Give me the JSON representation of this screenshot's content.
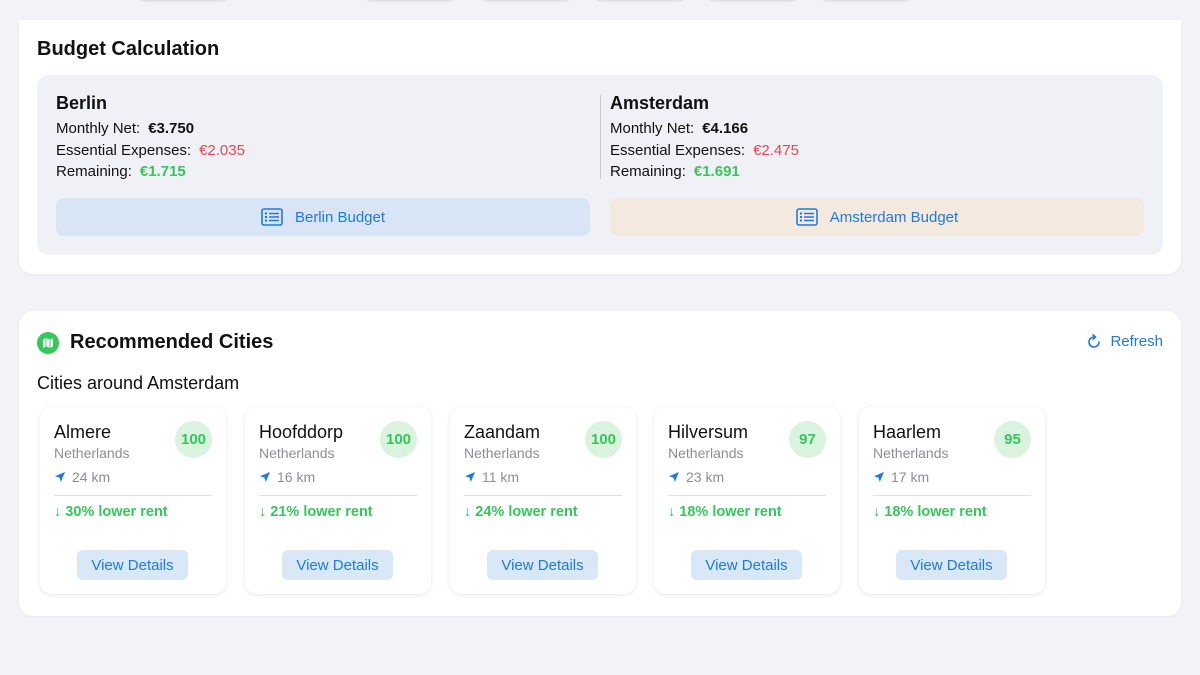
{
  "budget": {
    "title": "Budget Calculation",
    "cities": [
      {
        "name": "Berlin",
        "monthly_net_label": "Monthly Net:",
        "monthly_net": "€3.750",
        "expenses_label": "Essential Expenses:",
        "expenses": "€2.035",
        "remaining_label": "Remaining:",
        "remaining": "€1.715",
        "button_label": "Berlin Budget"
      },
      {
        "name": "Amsterdam",
        "monthly_net_label": "Monthly Net:",
        "monthly_net": "€4.166",
        "expenses_label": "Essential Expenses:",
        "expenses": "€2.475",
        "remaining_label": "Remaining:",
        "remaining": "€1.691",
        "button_label": "Amsterdam Budget"
      }
    ]
  },
  "recommended": {
    "title": "Recommended Cities",
    "refresh_label": "Refresh",
    "subtitle": "Cities around Amsterdam",
    "view_details_label": "View Details",
    "cities": [
      {
        "name": "Almere",
        "country": "Netherlands",
        "score": "100",
        "distance": "24 km",
        "rent": "30% lower rent"
      },
      {
        "name": "Hoofddorp",
        "country": "Netherlands",
        "score": "100",
        "distance": "16 km",
        "rent": "21% lower rent"
      },
      {
        "name": "Zaandam",
        "country": "Netherlands",
        "score": "100",
        "distance": "11 km",
        "rent": "24% lower rent"
      },
      {
        "name": "Hilversum",
        "country": "Netherlands",
        "score": "97",
        "distance": "23 km",
        "rent": "18% lower rent"
      },
      {
        "name": "Haarlem",
        "country": "Netherlands",
        "score": "95",
        "distance": "17 km",
        "rent": "18% lower rent"
      }
    ]
  },
  "colors": {
    "accent": "#1e7ae0",
    "positive": "#34c759",
    "negative": "#e5484d",
    "background": "#f2f2f7"
  },
  "icons": {
    "budget_button": "list-document-icon",
    "recommended_header": "map-icon",
    "refresh": "refresh-icon",
    "distance": "location-arrow-icon",
    "rent": "arrow-down-icon"
  }
}
